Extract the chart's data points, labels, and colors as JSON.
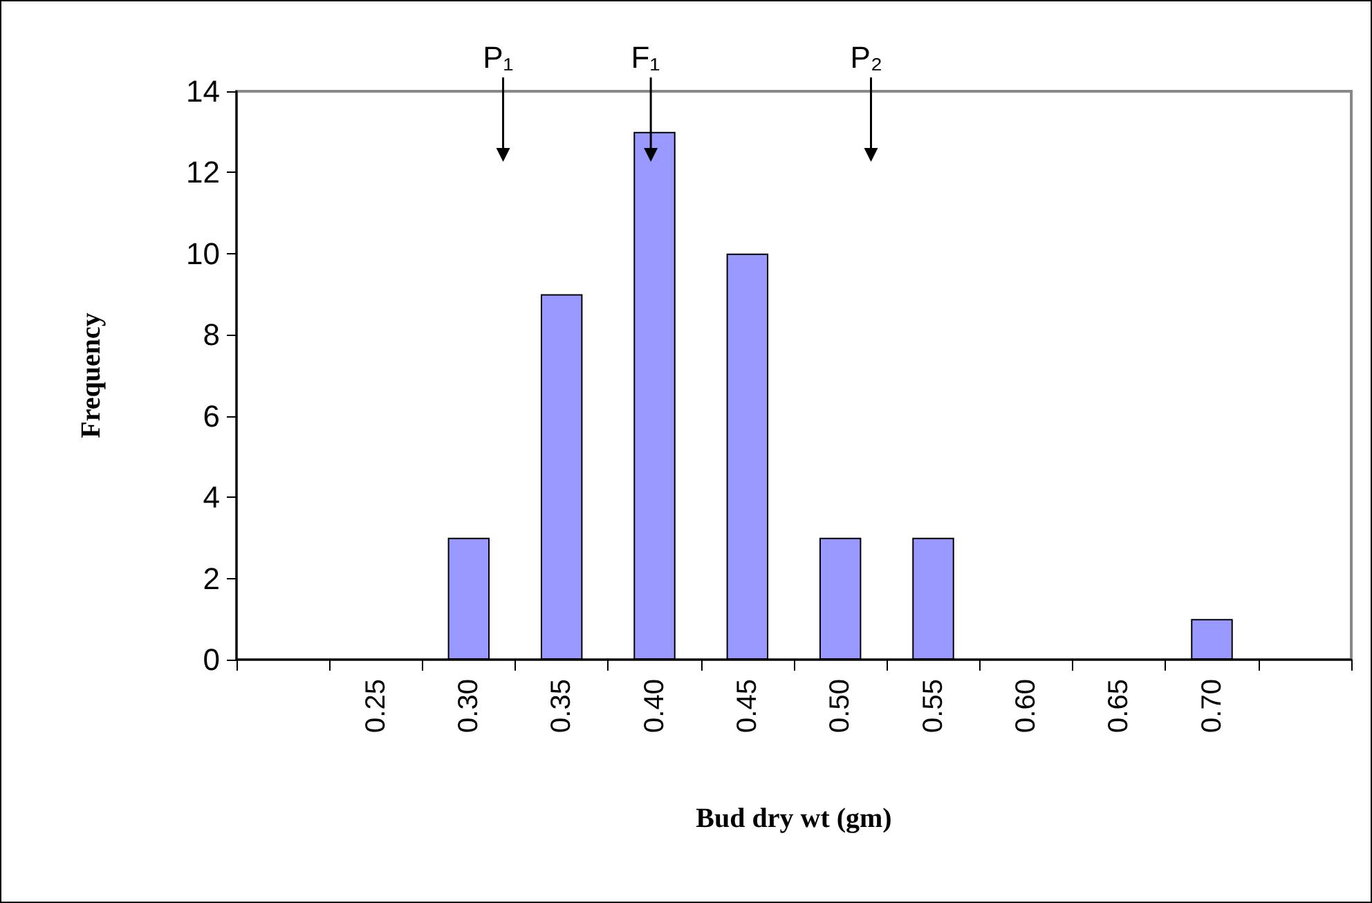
{
  "chart_data": {
    "type": "bar",
    "xlabel": "Bud dry wt (gm)",
    "ylabel": "Frequency",
    "categories": [
      null,
      "0.25",
      "0.30",
      "0.35",
      "0.40",
      "0.45",
      "0.50",
      "0.55",
      "0.60",
      "0.65",
      "0.70",
      null
    ],
    "values": [
      0,
      0,
      3,
      9,
      13,
      10,
      3,
      3,
      0,
      0,
      1,
      0
    ],
    "color": "#9999ff",
    "ylim": [
      0,
      14
    ],
    "yticks": [
      0,
      2,
      4,
      6,
      8,
      10,
      12,
      14
    ],
    "grid": false,
    "annotations": [
      "P₁",
      "F₁",
      "P₂"
    ]
  }
}
